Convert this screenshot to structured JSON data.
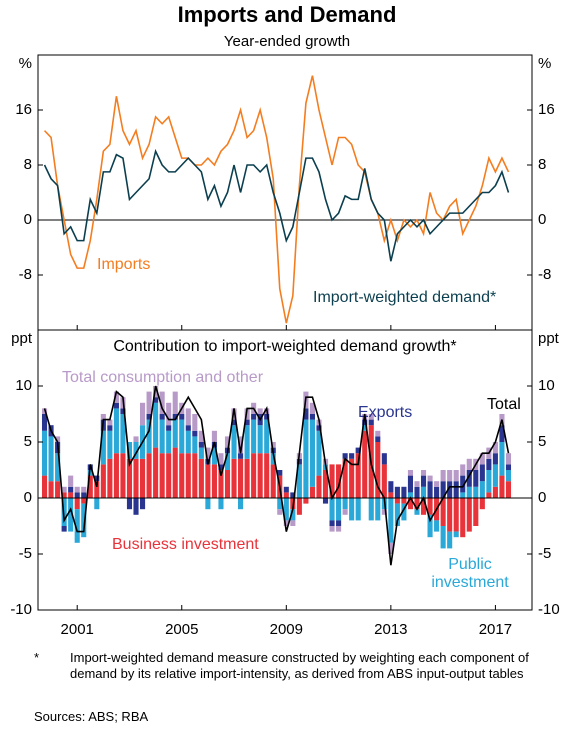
{
  "title": "Imports and Demand",
  "subtitle": "Year-ended growth",
  "footnote": {
    "marker": "*",
    "text": "Import-weighted demand measure constructed by weighting each component of demand by its relative import-intensity, as derived from ABS input-output tables"
  },
  "sources": "Sources: ABS; RBA",
  "chart_data": [
    {
      "type": "line",
      "y_unit": "%",
      "xlim": [
        1999.5,
        2018.4
      ],
      "ylim": [
        -16,
        24
      ],
      "yticks": [
        -8,
        0,
        8,
        16
      ],
      "x": [
        1999.75,
        2000,
        2000.25,
        2000.5,
        2000.75,
        2001,
        2001.25,
        2001.5,
        2001.75,
        2002,
        2002.25,
        2002.5,
        2002.75,
        2003,
        2003.25,
        2003.5,
        2003.75,
        2004,
        2004.25,
        2004.5,
        2004.75,
        2005,
        2005.25,
        2005.5,
        2005.75,
        2006,
        2006.25,
        2006.5,
        2006.75,
        2007,
        2007.25,
        2007.5,
        2007.75,
        2008,
        2008.25,
        2008.5,
        2008.75,
        2009,
        2009.25,
        2009.5,
        2009.75,
        2010,
        2010.25,
        2010.5,
        2010.75,
        2011,
        2011.25,
        2011.5,
        2011.75,
        2012,
        2012.25,
        2012.5,
        2012.75,
        2013,
        2013.25,
        2013.5,
        2013.75,
        2014,
        2014.25,
        2014.5,
        2014.75,
        2015,
        2015.25,
        2015.5,
        2015.75,
        2016,
        2016.25,
        2016.5,
        2016.75,
        2017,
        2017.25,
        2017.5
      ],
      "series": [
        {
          "name": "Imports",
          "color": "#f47d20",
          "values": [
            13,
            12,
            5,
            0,
            -5,
            -7,
            -7,
            -3,
            3,
            10,
            11,
            18,
            13,
            11,
            13,
            9,
            11,
            15,
            14,
            15,
            12,
            9,
            9,
            8,
            8,
            9,
            8,
            10,
            11,
            13,
            16,
            12,
            13,
            16,
            12,
            6,
            -10,
            -15,
            -11,
            5,
            17,
            21,
            16,
            12,
            8,
            12,
            12,
            11,
            8,
            7,
            3,
            1,
            -3,
            0,
            -3,
            0,
            -1,
            0,
            -2,
            4,
            1,
            0,
            2,
            3,
            -2,
            0,
            2,
            5,
            9,
            7,
            9,
            7
          ]
        },
        {
          "name": "Import-weighted demand*",
          "color": "#0b3f4f",
          "values": [
            8,
            6,
            5,
            -2,
            -1,
            -3,
            -3,
            3,
            1,
            7,
            7,
            9.5,
            9,
            3,
            4,
            5,
            6,
            10,
            8,
            7,
            7,
            8,
            9,
            8,
            7,
            3,
            5,
            2,
            4,
            8,
            4,
            8,
            8,
            7,
            8,
            4,
            1,
            -3,
            -1,
            4,
            9,
            9,
            7,
            3,
            0,
            1,
            3.5,
            3,
            3,
            7.5,
            3,
            1,
            0,
            -6,
            -2,
            -1,
            0,
            -1,
            0,
            -2,
            -1,
            0,
            1,
            1,
            1,
            2,
            3,
            4,
            4,
            5,
            7,
            4
          ]
        }
      ]
    },
    {
      "type": "stacked-bar",
      "title": "Contribution to import-weighted demand growth*",
      "y_unit": "ppt",
      "xlim": [
        1999.5,
        2018.4
      ],
      "xticks": [
        2001,
        2005,
        2009,
        2013,
        2017
      ],
      "ylim": [
        -10,
        15
      ],
      "yticks": [
        -10,
        -5,
        0,
        5,
        10
      ],
      "x": [
        1999.75,
        2000,
        2000.25,
        2000.5,
        2000.75,
        2001,
        2001.25,
        2001.5,
        2001.75,
        2002,
        2002.25,
        2002.5,
        2002.75,
        2003,
        2003.25,
        2003.5,
        2003.75,
        2004,
        2004.25,
        2004.5,
        2004.75,
        2005,
        2005.25,
        2005.5,
        2005.75,
        2006,
        2006.25,
        2006.5,
        2006.75,
        2007,
        2007.25,
        2007.5,
        2007.75,
        2008,
        2008.25,
        2008.5,
        2008.75,
        2009,
        2009.25,
        2009.5,
        2009.75,
        2010,
        2010.25,
        2010.5,
        2010.75,
        2011,
        2011.25,
        2011.5,
        2011.75,
        2012,
        2012.25,
        2012.5,
        2012.75,
        2013,
        2013.25,
        2013.5,
        2013.75,
        2014,
        2014.25,
        2014.5,
        2014.75,
        2015,
        2015.25,
        2015.5,
        2015.75,
        2016,
        2016.25,
        2016.5,
        2016.75,
        2017,
        2017.25,
        2017.5
      ],
      "series": [
        {
          "name": "Business investment",
          "color": "#e8333a",
          "values": [
            2,
            1.5,
            1.5,
            0.5,
            0.5,
            -1,
            -0.5,
            2,
            1.5,
            3,
            3.5,
            4,
            4,
            3.5,
            3.5,
            3.5,
            4,
            4.5,
            4,
            4,
            4.5,
            4,
            4,
            4,
            3.5,
            3,
            3,
            2.5,
            2.5,
            3.5,
            3.5,
            3.5,
            4,
            4,
            4,
            3,
            2,
            0.5,
            -1,
            -1.5,
            -0.5,
            1,
            2,
            2.5,
            3,
            3,
            3.5,
            3.5,
            4,
            6,
            6.5,
            5,
            3,
            0.5,
            -0.5,
            -0.5,
            -1,
            -1,
            -1.5,
            -1.5,
            -2,
            -2.5,
            -3,
            -3,
            -3.5,
            -3,
            -2.5,
            -1,
            0.5,
            1,
            2,
            1.5
          ]
        },
        {
          "name": "Public investment",
          "color": "#2aa8d8",
          "values": [
            4,
            4,
            2.5,
            -2.5,
            -3,
            -3,
            -3,
            0.5,
            -1,
            3,
            2.5,
            4,
            3.5,
            1.5,
            1.5,
            3,
            3,
            4,
            3,
            2,
            2.5,
            3,
            2,
            1.5,
            1,
            -1,
            1.5,
            -1,
            1.5,
            3,
            -1,
            3,
            3,
            2.5,
            3,
            1,
            -1,
            -2,
            -1,
            3,
            7,
            6,
            4,
            0.5,
            -2,
            -2,
            -1,
            -2,
            -2,
            0.5,
            -2,
            -2,
            -1,
            -4,
            -2,
            -1.5,
            0.5,
            -0.5,
            1,
            -2,
            -1,
            -2,
            -1.5,
            -0.5,
            0.5,
            1,
            1,
            1.5,
            2,
            2,
            3,
            1
          ]
        },
        {
          "name": "Exports",
          "color": "#2a3590",
          "values": [
            1.5,
            1,
            1,
            -0.5,
            0.5,
            0.5,
            0.5,
            0.5,
            0.5,
            1,
            0.5,
            0.5,
            0.5,
            -1,
            -1.5,
            -1,
            0.5,
            0.5,
            0.5,
            0.5,
            0.5,
            0.5,
            0.5,
            0.5,
            0.5,
            0.5,
            0.5,
            0.5,
            0.5,
            0.5,
            0.5,
            0.5,
            0.5,
            1,
            0.5,
            0.5,
            0.5,
            0.5,
            0.5,
            0.5,
            1,
            0.5,
            0.5,
            -0.5,
            -0.5,
            -0.5,
            0.5,
            0.5,
            0.5,
            0.5,
            0.5,
            0.5,
            1,
            1,
            1,
            1,
            1.5,
            1,
            1,
            1.5,
            1,
            1.5,
            1.5,
            1.5,
            1.5,
            1.5,
            1.5,
            1.5,
            1,
            1,
            1.5,
            0.5
          ]
        },
        {
          "name": "Total consumption and other",
          "color": "#b89ac8",
          "values": [
            0.5,
            0,
            0.5,
            0.5,
            1,
            0.5,
            0.5,
            0,
            0,
            0.5,
            0.5,
            1,
            1,
            0,
            0.5,
            2,
            2,
            1,
            2,
            2,
            2,
            1,
            1.5,
            1.5,
            1,
            1,
            1,
            1,
            1,
            1,
            1.5,
            1,
            1,
            0.5,
            0.5,
            0.5,
            -0.5,
            -0.5,
            -0.5,
            0.5,
            1.5,
            1,
            0.5,
            0.5,
            -0.5,
            -0.5,
            -0.5,
            0,
            0,
            0.5,
            0.5,
            0.5,
            -0.5,
            -1,
            0,
            0,
            0.5,
            0.5,
            0.5,
            0.5,
            0.5,
            1,
            1,
            1,
            1,
            1,
            1,
            1,
            1,
            1,
            1,
            1
          ]
        },
        {
          "name": "Total",
          "color": "#000000",
          "mark": "line",
          "values": [
            8,
            6,
            5,
            -2,
            -1,
            -3,
            -3,
            3,
            1,
            7,
            7,
            9.5,
            9,
            3,
            4,
            5,
            6,
            10,
            8,
            7,
            7,
            8,
            9,
            8,
            7,
            3,
            5,
            2,
            4,
            8,
            4,
            8,
            8,
            7,
            8,
            4,
            1,
            -3,
            -1,
            4,
            9,
            9,
            7,
            3,
            0,
            1,
            3.5,
            3,
            3,
            7.5,
            3,
            1,
            0,
            -6,
            -2,
            -1,
            0,
            -1,
            0,
            -2,
            -1,
            0,
            1,
            1,
            1,
            2,
            3,
            4,
            4,
            5,
            7,
            4
          ]
        }
      ]
    }
  ]
}
